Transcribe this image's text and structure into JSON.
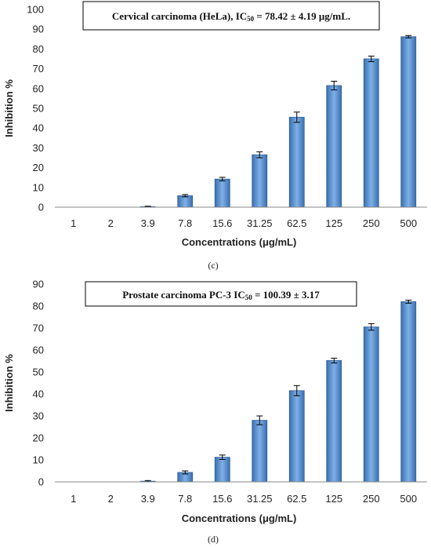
{
  "chart_data": [
    {
      "type": "bar",
      "title": "Cervical carcinoma (HeLa), IC50 = 78.42 ± 4.19 μg/mL.",
      "title_main": "Cervical carcinoma (HeLa), IC",
      "title_sub": "50",
      "title_tail": " = 78.42 ± 4.19 μg/mL.",
      "xlabel": "Concentrations (μg/mL)",
      "ylabel": "Inhibition %",
      "caption": "(c)",
      "categories": [
        "1",
        "2",
        "3.9",
        "7.8",
        "15.6",
        "31.25",
        "62.5",
        "125",
        "250",
        "500"
      ],
      "values": [
        0,
        0,
        0.3,
        5.8,
        14.2,
        26.5,
        45.5,
        61.5,
        75,
        86.2
      ],
      "errors": [
        0,
        0,
        0.2,
        0.6,
        0.9,
        1.5,
        2.6,
        2.2,
        1.4,
        0.6
      ],
      "ylim": [
        0,
        100
      ],
      "yticks": [
        0,
        10,
        20,
        30,
        40,
        50,
        60,
        70,
        80,
        90,
        100
      ],
      "grid": false,
      "bar_color": "#4a84c4"
    },
    {
      "type": "bar",
      "title": "Prostate carcinoma PC-3 IC50 = 100.39 ± 3.17",
      "title_main": "Prostate carcinoma PC-3 IC",
      "title_sub": "50",
      "title_tail": " = 100.39 ± 3.17",
      "xlabel": "Concentrations (μg/mL)",
      "ylabel": "Inhibition %",
      "caption": "(d)",
      "categories": [
        "1",
        "2",
        "3.9",
        "7.8",
        "15.6",
        "31.25",
        "62.5",
        "125",
        "250",
        "500"
      ],
      "values": [
        0,
        0,
        0.3,
        4.3,
        11.2,
        28,
        41.5,
        55.2,
        70.5,
        82
      ],
      "errors": [
        0,
        0,
        0.3,
        0.7,
        1,
        2,
        2.3,
        1.1,
        1.5,
        0.7
      ],
      "ylim": [
        0,
        90
      ],
      "yticks": [
        0,
        10,
        20,
        30,
        40,
        50,
        60,
        70,
        80,
        90
      ],
      "grid": false,
      "bar_color": "#4a84c4"
    }
  ]
}
